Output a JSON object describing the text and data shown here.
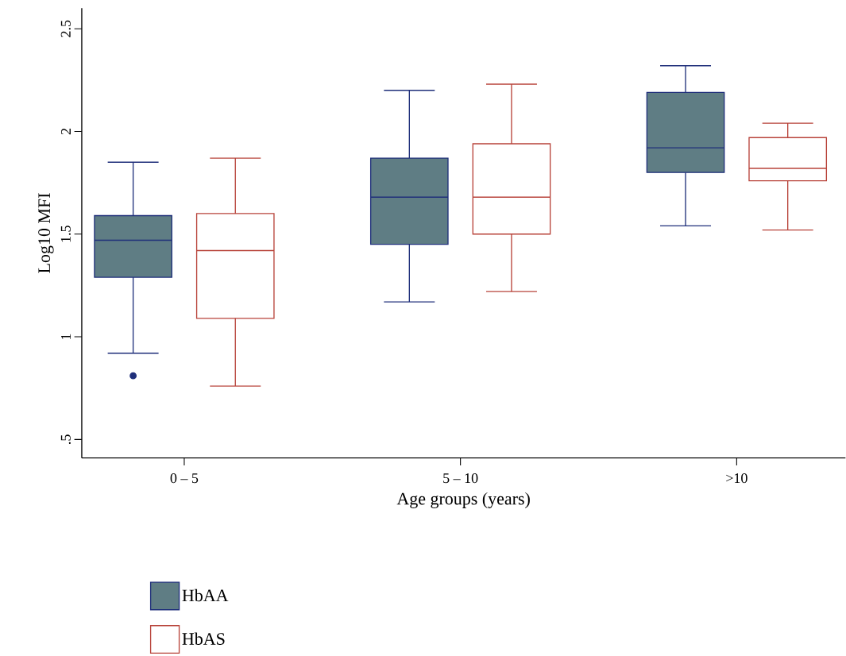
{
  "chart_data": {
    "type": "box",
    "xlabel": "Age groups (years)",
    "ylabel": "Log10 MFI",
    "categories": [
      "0 – 5",
      "5 – 10",
      ">10"
    ],
    "ylim": [
      0.41,
      2.6
    ],
    "yticks": [
      {
        "value": 0.5,
        "label": ".5"
      },
      1,
      1.5,
      2,
      2.5
    ],
    "legend": "bottom left",
    "grid": false,
    "series": [
      {
        "name": "HbAA",
        "color": "#1f2f7a",
        "colors": [
          "#5f7d84",
          "#5f7d84",
          "#5f7d84"
        ],
        "boxes": [
          {
            "low": 0.92,
            "q1": 1.29,
            "median": 1.47,
            "q3": 1.59,
            "high": 1.85,
            "outliers": [
              0.81
            ]
          },
          {
            "low": 1.17,
            "q1": 1.45,
            "median": 1.68,
            "q3": 1.87,
            "high": 2.2
          },
          {
            "low": 1.54,
            "q1": 1.8,
            "median": 1.92,
            "q3": 2.19,
            "high": 2.32
          }
        ]
      },
      {
        "name": "HbAS",
        "color": "#b8433a",
        "boxes": [
          {
            "low": 0.76,
            "q1": 1.09,
            "median": 1.42,
            "q3": 1.6,
            "high": 1.87
          },
          {
            "low": 1.22,
            "q1": 1.5,
            "median": 1.68,
            "q3": 1.94,
            "high": 2.23
          },
          {
            "low": 1.52,
            "q1": 1.76,
            "median": 1.82,
            "q3": 1.97,
            "high": 2.04
          }
        ]
      }
    ]
  }
}
